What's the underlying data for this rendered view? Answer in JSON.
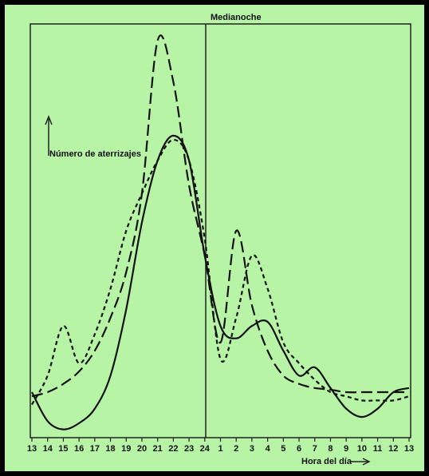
{
  "chart_data": {
    "type": "line",
    "annotation": "Medianoche",
    "y_label": "Número de aterrizajes",
    "x_label": "Hora del día",
    "categories": [
      "13",
      "14",
      "15",
      "16",
      "17",
      "18",
      "19",
      "20",
      "21",
      "22",
      "23",
      "24",
      "1",
      "2",
      "3",
      "4",
      "5",
      "6",
      "7",
      "8",
      "9",
      "10",
      "11",
      "12",
      "13"
    ],
    "ylim": [
      0,
      100
    ],
    "series": [
      {
        "color": "#111111",
        "dash": "14 6",
        "values": [
          10,
          11,
          13,
          16,
          21,
          29,
          40,
          59,
          96,
          86,
          61,
          44,
          23,
          50,
          32,
          21,
          15,
          13,
          12,
          11.6,
          11,
          11,
          11,
          11,
          11
        ]
      },
      {
        "color": "#111111",
        "dash": "5 4",
        "values": [
          8,
          15,
          27,
          18,
          25,
          36,
          50,
          59,
          67,
          72,
          67,
          48,
          19,
          29,
          44,
          36,
          23,
          18,
          14,
          11,
          10,
          9,
          9,
          9,
          10
        ]
      },
      {
        "color": "#111111",
        "dash": "none",
        "values": [
          11,
          4,
          2,
          3.5,
          7,
          15,
          31,
          52,
          67,
          73,
          67,
          44,
          27,
          24,
          27,
          28,
          21,
          15,
          17,
          12,
          7,
          5,
          7,
          11,
          12
        ]
      }
    ]
  }
}
